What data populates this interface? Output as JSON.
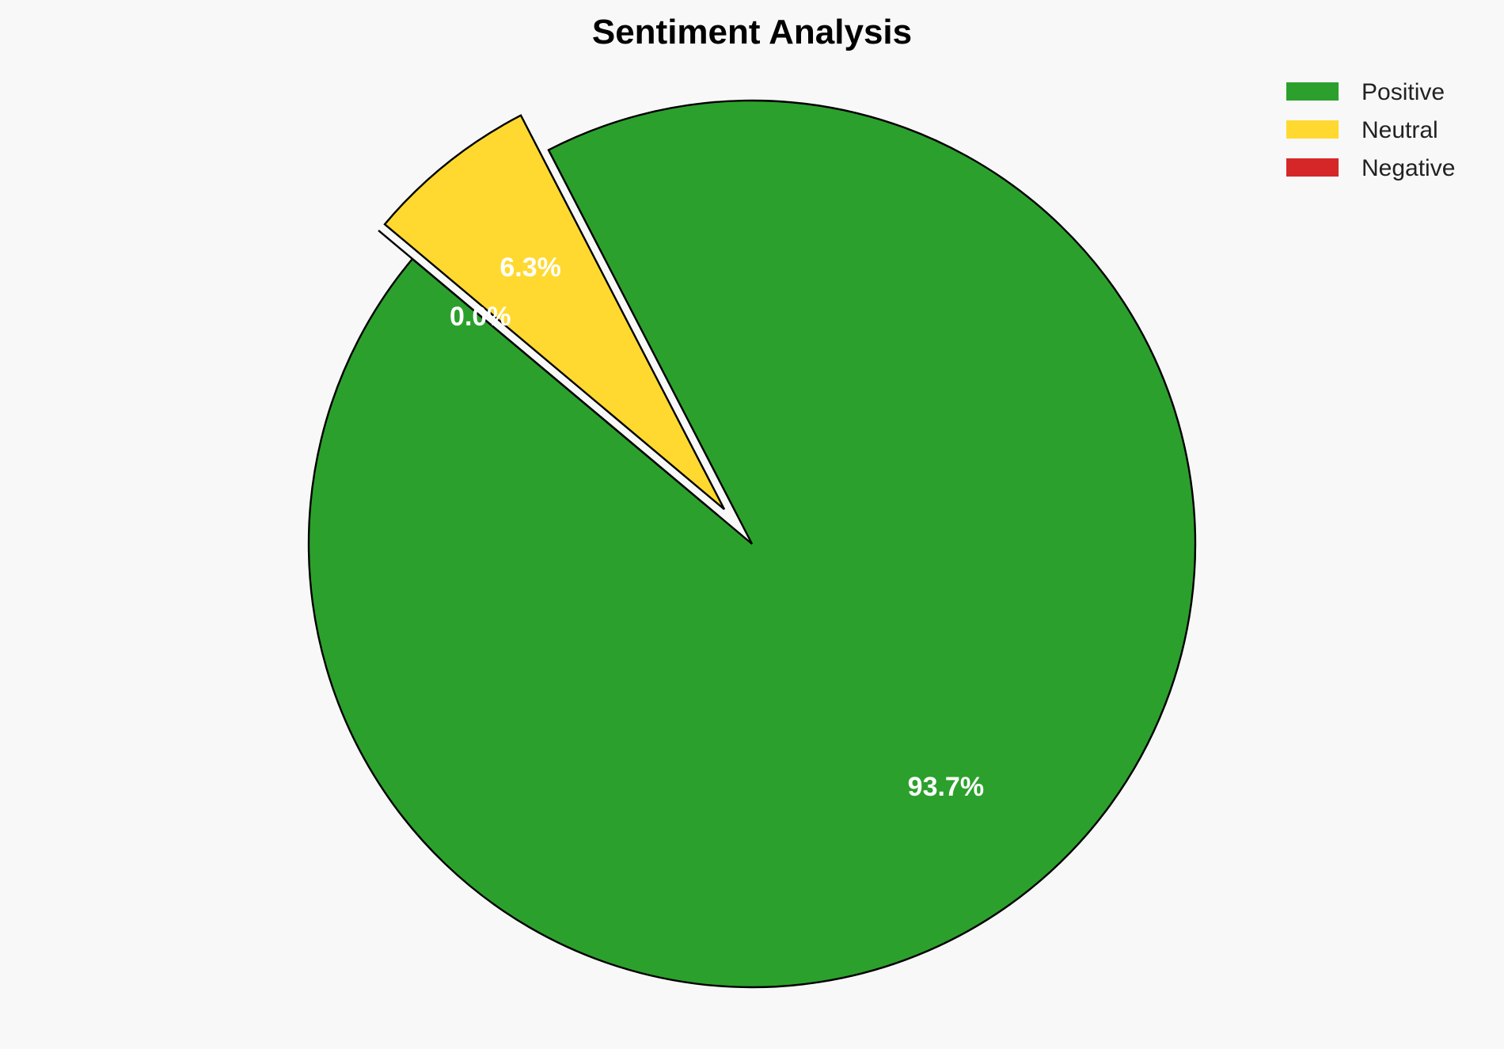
{
  "chart_data": {
    "type": "pie",
    "title": "Sentiment Analysis",
    "start_angle_deg": 140,
    "direction": "counterclockwise",
    "legend_placement": "top-right",
    "slices": [
      {
        "label": "Positive",
        "value": 93.7,
        "pct_label": "93.7%",
        "color": "#2ca02c",
        "explode": 0
      },
      {
        "label": "Neutral",
        "value": 6.3,
        "pct_label": "6.3%",
        "color": "#ffd92f",
        "explode": 0.1
      },
      {
        "label": "Negative",
        "value": 0.0,
        "pct_label": "0.0%",
        "color": "#d62728",
        "explode": 0.1
      }
    ],
    "edge_color": "#000000",
    "background": "#f8f8f8"
  }
}
